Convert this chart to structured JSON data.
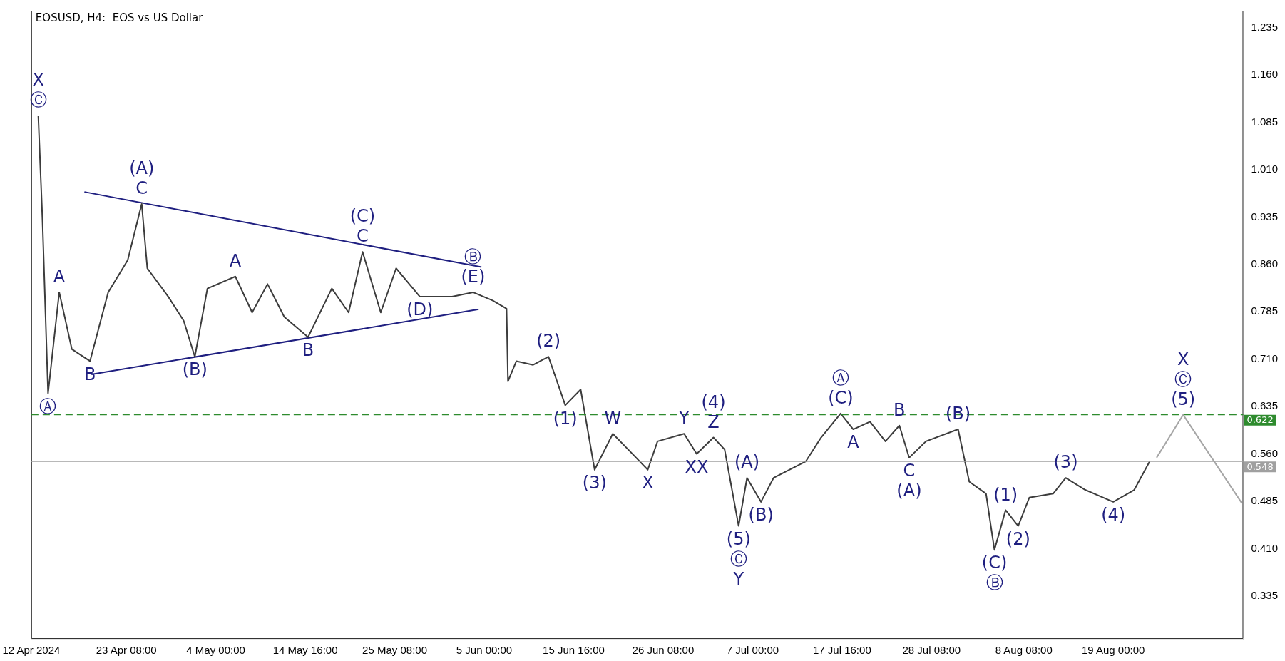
{
  "chart_data": {
    "type": "line",
    "title": "EOSUSD, H4:  EOS vs US Dollar",
    "xlim": [
      "2024-04-12T00:00",
      "2024-09-03T12:00"
    ],
    "xticks": [
      {
        "value": "2024-04-12T00:00",
        "label": "12 Apr 2024"
      },
      {
        "value": "2024-04-23T08:00",
        "label": "23 Apr 08:00"
      },
      {
        "value": "2024-05-04T00:00",
        "label": "4 May 00:00"
      },
      {
        "value": "2024-05-14T16:00",
        "label": "14 May 16:00"
      },
      {
        "value": "2024-05-25T08:00",
        "label": "25 May 08:00"
      },
      {
        "value": "2024-06-05T00:00",
        "label": "5 Jun 00:00"
      },
      {
        "value": "2024-06-15T16:00",
        "label": "15 Jun 16:00"
      },
      {
        "value": "2024-06-26T08:00",
        "label": "26 Jun 08:00"
      },
      {
        "value": "2024-07-07T00:00",
        "label": "7 Jul 00:00"
      },
      {
        "value": "2024-07-17T16:00",
        "label": "17 Jul 16:00"
      },
      {
        "value": "2024-07-28T08:00",
        "label": "28 Jul 08:00"
      },
      {
        "value": "2024-08-08T08:00",
        "label": "8 Aug 08:00"
      },
      {
        "value": "2024-08-19T00:00",
        "label": "19 Aug 00:00"
      }
    ],
    "ylim": [
      0.267,
      1.262
    ],
    "yticks": [
      {
        "value": 0.335,
        "label": "0.335"
      },
      {
        "value": 0.41,
        "label": "0.410"
      },
      {
        "value": 0.485,
        "label": "0.485"
      },
      {
        "value": 0.56,
        "label": "0.560"
      },
      {
        "value": 0.635,
        "label": "0.635"
      },
      {
        "value": 0.71,
        "label": "0.710"
      },
      {
        "value": 0.785,
        "label": "0.785"
      },
      {
        "value": 0.86,
        "label": "0.860"
      },
      {
        "value": 0.935,
        "label": "0.935"
      },
      {
        "value": 1.01,
        "label": "1.010"
      },
      {
        "value": 1.085,
        "label": "1.085"
      },
      {
        "value": 1.16,
        "label": "1.160"
      },
      {
        "value": 1.235,
        "label": "1.235"
      }
    ],
    "grid": false,
    "legend": false,
    "marker": "none",
    "series": [
      {
        "color": "#3c3c3c",
        "x": [
          "2024-04-12T20:00",
          "2024-04-13T08:00",
          "2024-04-14T00:00",
          "2024-04-15T08:00",
          "2024-04-16T20:00",
          "2024-04-19T00:00",
          "2024-04-21T04:00",
          "2024-04-23T12:00",
          "2024-04-25T04:00",
          "2024-04-25T20:00",
          "2024-04-28T08:00",
          "2024-04-30T04:00",
          "2024-05-01T12:00",
          "2024-05-03T00:00",
          "2024-05-06T08:00",
          "2024-05-08T08:00",
          "2024-05-10T04:00",
          "2024-05-12T04:00",
          "2024-05-15T00:00",
          "2024-05-17T20:00",
          "2024-05-19T20:00",
          "2024-05-21T12:00",
          "2024-05-23T16:00",
          "2024-05-25T12:00",
          "2024-05-28T08:00",
          "2024-06-01T04:00",
          "2024-06-03T16:00",
          "2024-06-06T00:00",
          "2024-06-07T16:00",
          "2024-06-07T20:00",
          "2024-06-08T20:00",
          "2024-06-10T20:00",
          "2024-06-12T16:00",
          "2024-06-14T16:00",
          "2024-06-16T12:00",
          "2024-06-18T04:00",
          "2024-06-20T08:00",
          "2024-06-22T04:00",
          "2024-06-24T12:00",
          "2024-06-25T16:00",
          "2024-06-28T20:00",
          "2024-06-30T08:00",
          "2024-07-02T08:00",
          "2024-07-03T16:00",
          "2024-07-05T08:00",
          "2024-07-06T08:00",
          "2024-07-08T00:00",
          "2024-07-09T12:00",
          "2024-07-13T08:00",
          "2024-07-15T04:00",
          "2024-07-17T12:00",
          "2024-07-19T00:00",
          "2024-07-21T00:00",
          "2024-07-22T20:00",
          "2024-07-24T12:00",
          "2024-07-25T16:00",
          "2024-07-27T16:00",
          "2024-07-31T12:00",
          "2024-08-01T20:00",
          "2024-08-03T20:00",
          "2024-08-04T20:00",
          "2024-08-06T04:00",
          "2024-08-07T16:00",
          "2024-08-09T00:00",
          "2024-08-11T20:00",
          "2024-08-13T08:00",
          "2024-08-15T16:00",
          "2024-08-19T00:00",
          "2024-08-21T12:00",
          "2024-08-23T08:00"
        ],
        "values": [
          1.096,
          0.93,
          0.656,
          0.816,
          0.726,
          0.707,
          0.816,
          0.867,
          0.956,
          0.854,
          0.809,
          0.771,
          0.714,
          0.822,
          0.841,
          0.784,
          0.829,
          0.777,
          0.745,
          0.822,
          0.784,
          0.88,
          0.784,
          0.854,
          0.809,
          0.809,
          0.816,
          0.803,
          0.79,
          0.675,
          0.707,
          0.701,
          0.714,
          0.637,
          0.662,
          0.535,
          0.592,
          0.567,
          0.535,
          0.58,
          0.592,
          0.56,
          0.586,
          0.567,
          0.446,
          0.522,
          0.484,
          0.522,
          0.548,
          0.586,
          0.624,
          0.599,
          0.611,
          0.58,
          0.605,
          0.554,
          0.58,
          0.599,
          0.516,
          0.497,
          0.408,
          0.471,
          0.446,
          0.491,
          0.497,
          0.522,
          0.503,
          0.484,
          0.503,
          0.548
        ]
      },
      {
        "color": "#a6a6a6",
        "x": [
          "2024-08-24T04:00",
          "2024-08-27T08:00",
          "2024-09-03T08:00"
        ],
        "values": [
          0.554,
          0.622,
          0.482
        ]
      },
      {
        "color": "#1f1f80",
        "x": [
          "2024-04-18T08:00",
          "2024-06-04T16:00"
        ],
        "values": [
          0.975,
          0.856
        ]
      },
      {
        "color": "#1f1f80",
        "x": [
          "2024-04-19T04:00",
          "2024-06-04T08:00"
        ],
        "values": [
          0.686,
          0.789
        ]
      }
    ],
    "ref_lines": [
      {
        "axis": "y",
        "value": 0.622,
        "label": "0.622",
        "color": "#2e8b2e",
        "line_style": "dashed"
      },
      {
        "axis": "y",
        "value": 0.548,
        "label": "0.548",
        "color": "#a0a0a0",
        "line_style": "solid"
      }
    ],
    "annotations": [
      {
        "text": "Ⓒ",
        "x": "2024-04-12T20:00",
        "y": 1.096
      },
      {
        "text": "X",
        "x": "2024-04-12T20:00",
        "y": 1.096
      },
      {
        "text": "Ⓐ",
        "x": "2024-04-14T00:00",
        "y": 0.656
      },
      {
        "text": "A",
        "x": "2024-04-15T08:00",
        "y": 0.816
      },
      {
        "text": "B",
        "x": "2024-04-19T00:00",
        "y": 0.707
      },
      {
        "text": "C",
        "x": "2024-04-25T04:00",
        "y": 0.956
      },
      {
        "text": "(A)",
        "x": "2024-04-25T04:00",
        "y": 0.956
      },
      {
        "text": "(B)",
        "x": "2024-05-01T12:00",
        "y": 0.714
      },
      {
        "text": "A",
        "x": "2024-05-06T08:00",
        "y": 0.841
      },
      {
        "text": "B",
        "x": "2024-05-15T00:00",
        "y": 0.745
      },
      {
        "text": "C",
        "x": "2024-05-21T12:00",
        "y": 0.88
      },
      {
        "text": "(C)",
        "x": "2024-05-21T12:00",
        "y": 0.88
      },
      {
        "text": "(D)",
        "x": "2024-05-28T08:00",
        "y": 0.809
      },
      {
        "text": "(E)",
        "x": "2024-06-03T16:00",
        "y": 0.816
      },
      {
        "text": "Ⓑ",
        "x": "2024-06-03T16:00",
        "y": 0.816
      },
      {
        "text": "(2)",
        "x": "2024-06-12T16:00",
        "y": 0.714
      },
      {
        "text": "(1)",
        "x": "2024-06-14T16:00",
        "y": 0.637
      },
      {
        "text": "(3)",
        "x": "2024-06-18T04:00",
        "y": 0.535
      },
      {
        "text": "W",
        "x": "2024-06-20T08:00",
        "y": 0.592
      },
      {
        "text": "X",
        "x": "2024-06-24T12:00",
        "y": 0.535
      },
      {
        "text": "Y",
        "x": "2024-06-28T20:00",
        "y": 0.592
      },
      {
        "text": "XX",
        "x": "2024-06-30T08:00",
        "y": 0.56
      },
      {
        "text": "Z",
        "x": "2024-07-02T08:00",
        "y": 0.586
      },
      {
        "text": "(4)",
        "x": "2024-07-02T08:00",
        "y": 0.586
      },
      {
        "text": "(5)",
        "x": "2024-07-05T08:00",
        "y": 0.446
      },
      {
        "text": "Ⓒ",
        "x": "2024-07-05T08:00",
        "y": 0.446
      },
      {
        "text": "Y",
        "x": "2024-07-05T08:00",
        "y": 0.446
      },
      {
        "text": "(A)",
        "x": "2024-07-06T08:00",
        "y": 0.522
      },
      {
        "text": "(B)",
        "x": "2024-07-08T00:00",
        "y": 0.484
      },
      {
        "text": "(C)",
        "x": "2024-07-17T12:00",
        "y": 0.624
      },
      {
        "text": "Ⓐ",
        "x": "2024-07-17T12:00",
        "y": 0.624
      },
      {
        "text": "A",
        "x": "2024-07-19T00:00",
        "y": 0.599
      },
      {
        "text": "B",
        "x": "2024-07-24T12:00",
        "y": 0.605
      },
      {
        "text": "C",
        "x": "2024-07-25T16:00",
        "y": 0.554
      },
      {
        "text": "(A)",
        "x": "2024-07-25T16:00",
        "y": 0.554
      },
      {
        "text": "(B)",
        "x": "2024-07-31T12:00",
        "y": 0.599
      },
      {
        "text": "(C)",
        "x": "2024-08-04T20:00",
        "y": 0.408
      },
      {
        "text": "Ⓑ",
        "x": "2024-08-04T20:00",
        "y": 0.408
      },
      {
        "text": "(1)",
        "x": "2024-08-06T04:00",
        "y": 0.471
      },
      {
        "text": "(2)",
        "x": "2024-08-07T16:00",
        "y": 0.446
      },
      {
        "text": "(3)",
        "x": "2024-08-13T08:00",
        "y": 0.522
      },
      {
        "text": "(4)",
        "x": "2024-08-19T00:00",
        "y": 0.484
      },
      {
        "text": "(5)",
        "x": "2024-08-27T08:00",
        "y": 0.622
      },
      {
        "text": "Ⓒ",
        "x": "2024-08-27T08:00",
        "y": 0.622
      },
      {
        "text": "X",
        "x": "2024-08-27T08:00",
        "y": 0.622
      }
    ]
  }
}
